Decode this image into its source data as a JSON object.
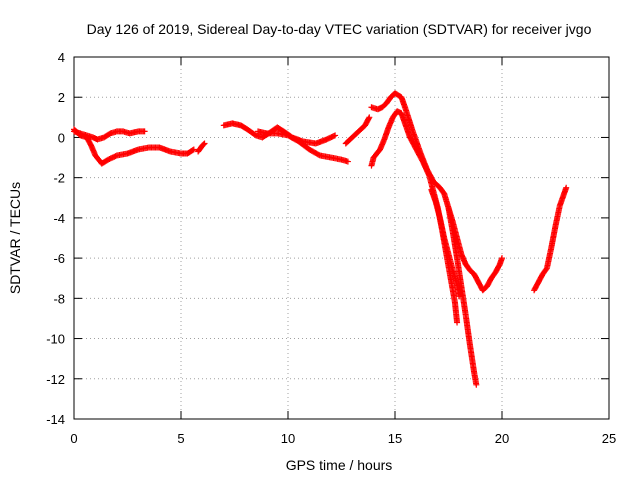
{
  "chart_data": {
    "type": "scatter",
    "title": "Day 126 of 2019, Sidereal Day-to-day VTEC variation (SDTVAR) for receiver jvgo",
    "xlabel": "GPS time / hours",
    "ylabel": "SDTVAR / TECUs",
    "xlim": [
      0,
      25
    ],
    "ylim": [
      -14,
      4
    ],
    "x_ticks": [
      0,
      5,
      10,
      15,
      20,
      25
    ],
    "y_ticks": [
      -14,
      -12,
      -10,
      -8,
      -6,
      -4,
      -2,
      0,
      2,
      4
    ],
    "grid": true,
    "marker": "+",
    "series": [
      {
        "name": "SDTVAR",
        "color": "#ff0000",
        "segments": [
          [
            [
              0,
              0.4
            ],
            [
              0.3,
              0.1
            ],
            [
              0.6,
              0
            ],
            [
              0.8,
              -0.4
            ],
            [
              1.0,
              -0.9
            ],
            [
              1.3,
              -1.3
            ],
            [
              1.6,
              -1.1
            ],
            [
              2.0,
              -0.9
            ],
            [
              2.5,
              -0.8
            ],
            [
              3.0,
              -0.6
            ],
            [
              3.5,
              -0.5
            ],
            [
              4.0,
              -0.5
            ],
            [
              4.5,
              -0.7
            ],
            [
              5.0,
              -0.8
            ],
            [
              5.3,
              -0.8
            ],
            [
              5.6,
              -0.6
            ]
          ],
          [
            [
              0,
              0.3
            ],
            [
              0.3,
              0.2
            ],
            [
              0.6,
              0.1
            ],
            [
              0.9,
              0
            ],
            [
              1.1,
              -0.1
            ],
            [
              1.4,
              0
            ],
            [
              1.7,
              0.2
            ],
            [
              2.0,
              0.3
            ],
            [
              2.3,
              0.3
            ],
            [
              2.6,
              0.2
            ],
            [
              3.0,
              0.3
            ],
            [
              3.3,
              0.3
            ]
          ],
          [
            [
              5.8,
              -0.7
            ],
            [
              6.0,
              -0.4
            ],
            [
              6.1,
              -0.3
            ]
          ],
          [
            [
              7.0,
              0.6
            ],
            [
              7.4,
              0.7
            ],
            [
              7.8,
              0.6
            ],
            [
              8.1,
              0.4
            ],
            [
              8.5,
              0.1
            ],
            [
              8.8,
              0
            ],
            [
              9.1,
              0.2
            ],
            [
              9.5,
              0.5
            ],
            [
              9.8,
              0.3
            ],
            [
              10.2,
              0
            ],
            [
              10.7,
              -0.2
            ],
            [
              11.3,
              -0.3
            ],
            [
              11.8,
              -0.1
            ],
            [
              12.2,
              0.1
            ]
          ],
          [
            [
              8.6,
              0.3
            ],
            [
              9.0,
              0.2
            ],
            [
              9.5,
              0.2
            ],
            [
              10.0,
              0.1
            ],
            [
              10.5,
              -0.2
            ],
            [
              11.0,
              -0.6
            ],
            [
              11.5,
              -0.9
            ],
            [
              12.0,
              -1.0
            ],
            [
              12.5,
              -1.1
            ],
            [
              12.8,
              -1.2
            ]
          ],
          [
            [
              12.7,
              -0.3
            ],
            [
              13.0,
              0
            ],
            [
              13.3,
              0.3
            ],
            [
              13.6,
              0.6
            ],
            [
              13.8,
              1.0
            ]
          ],
          [
            [
              13.9,
              -1.4
            ],
            [
              14.0,
              -1.0
            ],
            [
              14.3,
              -0.6
            ],
            [
              14.5,
              -0.1
            ],
            [
              14.7,
              0.5
            ],
            [
              14.9,
              1.0
            ],
            [
              15.1,
              1.3
            ],
            [
              15.3,
              1.2
            ],
            [
              15.5,
              0.6
            ],
            [
              15.7,
              0
            ],
            [
              16.0,
              -0.6
            ],
            [
              16.3,
              -1.2
            ],
            [
              16.6,
              -1.9
            ],
            [
              16.8,
              -2.7
            ],
            [
              17.0,
              -3.5
            ],
            [
              17.2,
              -4.6
            ],
            [
              17.4,
              -5.8
            ],
            [
              17.6,
              -7.0
            ],
            [
              17.8,
              -8.2
            ],
            [
              17.9,
              -9.2
            ]
          ],
          [
            [
              13.9,
              1.5
            ],
            [
              14.2,
              1.4
            ],
            [
              14.4,
              1.5
            ],
            [
              14.6,
              1.7
            ],
            [
              14.8,
              2.0
            ],
            [
              15.0,
              2.2
            ],
            [
              15.3,
              2.0
            ],
            [
              15.5,
              1.4
            ],
            [
              15.8,
              0.4
            ],
            [
              16.2,
              -0.8
            ],
            [
              16.5,
              -1.6
            ],
            [
              16.8,
              -2.2
            ],
            [
              17.1,
              -2.5
            ],
            [
              17.3,
              -2.8
            ],
            [
              17.5,
              -3.5
            ],
            [
              17.7,
              -4.7
            ],
            [
              17.9,
              -6.0
            ],
            [
              18.1,
              -7.4
            ],
            [
              18.3,
              -8.8
            ],
            [
              18.5,
              -10.3
            ],
            [
              18.7,
              -11.7
            ],
            [
              18.8,
              -12.3
            ]
          ],
          [
            [
              16.7,
              -2.6
            ],
            [
              16.9,
              -3.2
            ],
            [
              17.1,
              -4.0
            ],
            [
              17.3,
              -5.0
            ],
            [
              17.5,
              -5.8
            ],
            [
              17.7,
              -6.6
            ],
            [
              17.9,
              -7.3
            ],
            [
              18.0,
              -7.9
            ]
          ],
          [
            [
              17.5,
              -3.5
            ],
            [
              17.7,
              -4.2
            ],
            [
              17.9,
              -5.0
            ],
            [
              18.1,
              -5.8
            ],
            [
              18.3,
              -6.3
            ],
            [
              18.5,
              -6.6
            ],
            [
              18.7,
              -6.8
            ],
            [
              18.9,
              -7.2
            ],
            [
              19.1,
              -7.6
            ],
            [
              19.3,
              -7.4
            ],
            [
              19.5,
              -7.0
            ],
            [
              19.7,
              -6.7
            ],
            [
              19.9,
              -6.3
            ],
            [
              20.0,
              -6.0
            ]
          ],
          [
            [
              21.5,
              -7.6
            ],
            [
              21.7,
              -7.2
            ],
            [
              21.9,
              -6.8
            ],
            [
              22.1,
              -6.5
            ],
            [
              22.3,
              -5.5
            ],
            [
              22.5,
              -4.4
            ],
            [
              22.7,
              -3.4
            ],
            [
              22.9,
              -2.8
            ],
            [
              23.0,
              -2.5
            ]
          ]
        ]
      }
    ]
  }
}
